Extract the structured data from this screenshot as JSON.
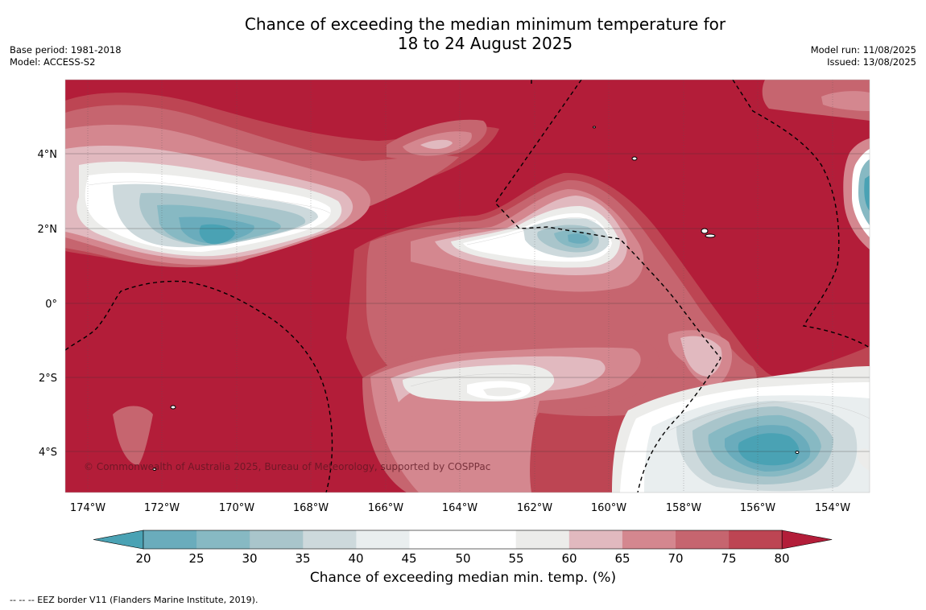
{
  "header": {
    "title_line1": "Chance of exceeding the median minimum temperature for",
    "title_line2": "18 to 24 August 2025",
    "base_period": "Base period: 1981-2018",
    "model": "Model: ACCESS-S2",
    "model_run": "Model run: 11/08/2025",
    "issued": "Issued: 13/08/2025"
  },
  "map": {
    "lon_ticks": [
      "174°W",
      "172°W",
      "170°W",
      "168°W",
      "166°W",
      "164°W",
      "162°W",
      "160°W",
      "158°W",
      "156°W",
      "154°W"
    ],
    "lat_ticks": [
      "4°N",
      "2°N",
      "0°",
      "2°S",
      "4°S"
    ],
    "copyright": "© Commonwealth of Australia 2025, Bureau of Meteorology, supported by COSPPac"
  },
  "colorbar": {
    "title": "Chance of exceeding median min. temp. (%)",
    "ticks": [
      "20",
      "25",
      "30",
      "35",
      "40",
      "45",
      "50",
      "55",
      "60",
      "65",
      "70",
      "75",
      "80"
    ],
    "colors": [
      "#4aa2b4",
      "#6aacbc",
      "#87b9c3",
      "#a9c5cb",
      "#cdd9dc",
      "#e9eeef",
      "#ffffff",
      "#ffffff",
      "#ececea",
      "#e1b9bf",
      "#d4878f",
      "#c6656f",
      "#bd4553",
      "#b31d39"
    ]
  },
  "footnote": "--  --  -- EEZ border V11 (Flanders Marine Institute, 2019)."
}
